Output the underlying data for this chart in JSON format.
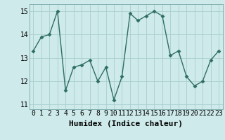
{
  "x": [
    0,
    1,
    2,
    3,
    4,
    5,
    6,
    7,
    8,
    9,
    10,
    11,
    12,
    13,
    14,
    15,
    16,
    17,
    18,
    19,
    20,
    21,
    22,
    23
  ],
  "y": [
    13.3,
    13.9,
    14.0,
    15.0,
    11.6,
    12.6,
    12.7,
    12.9,
    12.0,
    12.6,
    11.2,
    12.2,
    14.9,
    14.6,
    14.8,
    15.0,
    14.8,
    13.1,
    13.3,
    12.2,
    11.8,
    12.0,
    12.9,
    13.3
  ],
  "line_color": "#2e6e62",
  "marker": "D",
  "marker_size": 2.5,
  "bg_color": "#ceeaea",
  "grid_color": "#aacece",
  "xlabel": "Humidex (Indice chaleur)",
  "ylim": [
    10.8,
    15.3
  ],
  "xlim": [
    -0.5,
    23.5
  ],
  "yticks": [
    11,
    12,
    13,
    14,
    15
  ],
  "xticks": [
    0,
    1,
    2,
    3,
    4,
    5,
    6,
    7,
    8,
    9,
    10,
    11,
    12,
    13,
    14,
    15,
    16,
    17,
    18,
    19,
    20,
    21,
    22,
    23
  ],
  "xlabel_fontsize": 8,
  "tick_fontsize": 7,
  "line_width": 1.0
}
